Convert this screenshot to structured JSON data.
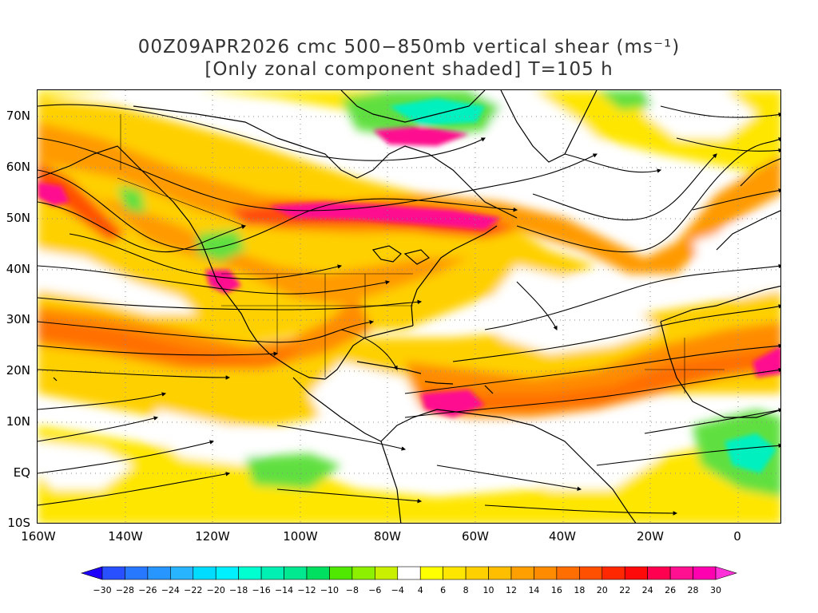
{
  "title": {
    "line1": "00Z09APR2026 cmc 500−850mb vertical shear (ms⁻¹)",
    "line2": "[Only zonal component shaded] T=105 h"
  },
  "axes": {
    "lat_labels": [
      "70N",
      "60N",
      "50N",
      "40N",
      "30N",
      "20N",
      "10N",
      "EQ",
      "10S"
    ],
    "lat_values": [
      70,
      60,
      50,
      40,
      30,
      20,
      10,
      0,
      -10
    ],
    "lon_labels": [
      "160W",
      "140W",
      "120W",
      "100W",
      "80W",
      "60W",
      "40W",
      "20W",
      "0"
    ],
    "lon_values": [
      -160,
      -140,
      -120,
      -100,
      -80,
      -60,
      -40,
      -20,
      0
    ],
    "lat_range": [
      -10,
      75
    ],
    "lon_range": [
      -160,
      10
    ]
  },
  "colorbar": {
    "labels": [
      "−30",
      "−28",
      "−26",
      "−24",
      "−22",
      "−20",
      "−18",
      "−16",
      "−14",
      "−12",
      "−10",
      "−8",
      "−6",
      "−4",
      "4",
      "6",
      "8",
      "10",
      "12",
      "14",
      "16",
      "18",
      "20",
      "22",
      "24",
      "26",
      "28",
      "30"
    ],
    "colors": [
      "#1e00ff",
      "#2850ff",
      "#2878ff",
      "#2896ff",
      "#28b4ff",
      "#00dcff",
      "#00f0ff",
      "#00ffd0",
      "#00f0b4",
      "#00e890",
      "#00e060",
      "#50e800",
      "#8cf000",
      "#c8f000",
      "#ffffff",
      "#ffff00",
      "#ffe600",
      "#ffd000",
      "#ffbe00",
      "#ffa000",
      "#ff8c00",
      "#ff6e00",
      "#ff5000",
      "#ff2800",
      "#ff0a0a",
      "#ff0050",
      "#ff1090",
      "#ff00b0",
      "#ff30d8"
    ]
  },
  "legend_colors": {
    "white": "#ffffff",
    "yellow": "#ffe600",
    "orange": "#ff9a00",
    "dark_orange": "#ff6e00",
    "red_orange": "#ff4a10",
    "magenta": "#ff1090",
    "green": "#60e040",
    "aqua": "#00f0c0"
  }
}
